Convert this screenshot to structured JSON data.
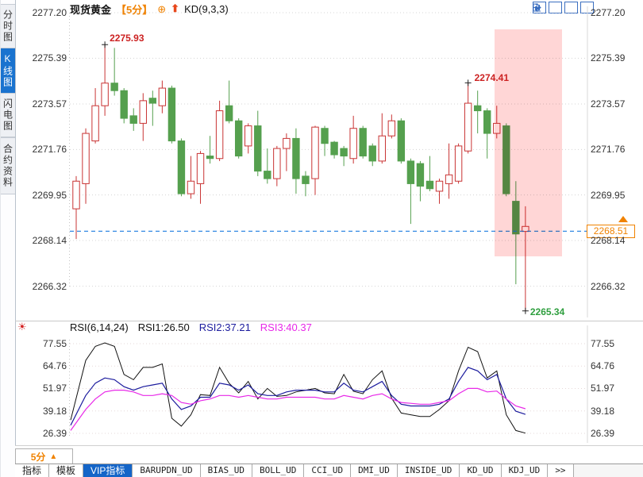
{
  "header": {
    "symbol": "现货黄金",
    "period": "【5分】",
    "plus_icon": "⊕",
    "up_arrow_icon": "⬆",
    "indicator": "KD(9,3,3)"
  },
  "toolbar_icons": [
    "move-crosshair",
    "chart-overlay",
    "chart-play",
    "exit-window"
  ],
  "sidebar": {
    "items": [
      {
        "label": "分时图",
        "selected": false
      },
      {
        "label": "K线图",
        "selected": true
      },
      {
        "label": "闪电图",
        "selected": false
      },
      {
        "label": "合约资料",
        "selected": false
      }
    ]
  },
  "main_chart": {
    "current_price_label": "2268.51",
    "annotations": {
      "high1": "2275.93",
      "high2": "2274.41",
      "low": "2265.34"
    }
  },
  "rsi_panel": {
    "title": "RSI(6,14,24)",
    "value1": "RSI1:26.50",
    "value2": "RSI2:37.21",
    "value3": "RSI3:40.37"
  },
  "bottom_bar": {
    "period_label": "5分",
    "period_arrow": "▲",
    "tabs": [
      {
        "label": "指标",
        "selected": false
      },
      {
        "label": "模板",
        "selected": false
      },
      {
        "label": "VIP指标",
        "selected": true
      },
      {
        "label": "BARUPDN_UD",
        "selected": false
      },
      {
        "label": "BIAS_UD",
        "selected": false
      },
      {
        "label": "BOLL_UD",
        "selected": false
      },
      {
        "label": "CCI_UD",
        "selected": false
      },
      {
        "label": "DMI_UD",
        "selected": false
      },
      {
        "label": "INSIDE_UD",
        "selected": false
      },
      {
        "label": "KD_UD",
        "selected": false
      },
      {
        "label": "KDJ_UD",
        "selected": false
      },
      {
        "label": ">>",
        "selected": false
      }
    ]
  },
  "colors": {
    "up": "#c93434",
    "down": "#55a04e",
    "accent_orange": "#f08200",
    "annotation_red": "#cc2222",
    "annotation_green": "#2e9e3e",
    "current_line_blue": "#1b7ce0",
    "selected_blue": "#1a73cf",
    "rsi1": "#111111",
    "rsi2": "#1c1c9e",
    "rsi3": "#e829e8",
    "zone_pink": "#ffd6d6"
  },
  "chart_data": {
    "type": "candlestick",
    "title": "现货黄金 5分 K线",
    "y_axis_ticks": [
      2277.2,
      2275.39,
      2273.57,
      2271.76,
      2269.95,
      2268.14,
      2266.32
    ],
    "ylim": [
      2265.0,
      2277.8
    ],
    "current_price": 2268.51,
    "grid": "dotted-horizontal",
    "candles_ohlc": [
      [
        2269.4,
        2270.7,
        2268.2,
        2270.5
      ],
      [
        2270.4,
        2272.6,
        2269.6,
        2272.4
      ],
      [
        2272.1,
        2274.2,
        2272.0,
        2273.5
      ],
      [
        2273.5,
        2275.93,
        2273.1,
        2274.4
      ],
      [
        2274.4,
        2275.8,
        2273.9,
        2274.1
      ],
      [
        2274.1,
        2274.2,
        2272.8,
        2273.0
      ],
      [
        2273.1,
        2273.4,
        2272.5,
        2272.8
      ],
      [
        2272.8,
        2274.0,
        2272.1,
        2273.7
      ],
      [
        2273.8,
        2274.1,
        2272.7,
        2273.6
      ],
      [
        2273.5,
        2274.5,
        2273.2,
        2274.2
      ],
      [
        2274.2,
        2274.3,
        2272.0,
        2272.1
      ],
      [
        2272.1,
        2272.2,
        2269.9,
        2270.0
      ],
      [
        2270.0,
        2271.5,
        2269.8,
        2270.5
      ],
      [
        2270.4,
        2271.7,
        2269.6,
        2271.6
      ],
      [
        2271.5,
        2272.3,
        2271.2,
        2271.4
      ],
      [
        2271.4,
        2273.7,
        2271.3,
        2273.3
      ],
      [
        2273.5,
        2274.5,
        2272.8,
        2272.9
      ],
      [
        2272.9,
        2273.0,
        2271.4,
        2271.5
      ],
      [
        2271.9,
        2272.8,
        2271.6,
        2272.7
      ],
      [
        2272.7,
        2273.3,
        2270.7,
        2270.9
      ],
      [
        2270.9,
        2271.8,
        2270.4,
        2270.6
      ],
      [
        2270.6,
        2271.9,
        2270.3,
        2271.8
      ],
      [
        2271.8,
        2272.4,
        2270.9,
        2272.2
      ],
      [
        2272.2,
        2272.6,
        2270.0,
        2270.6
      ],
      [
        2270.7,
        2270.9,
        2269.9,
        2270.4
      ],
      [
        2270.6,
        2272.7,
        2269.95,
        2272.65
      ],
      [
        2272.6,
        2272.7,
        2271.5,
        2272.0
      ],
      [
        2272.05,
        2272.1,
        2271.4,
        2271.55
      ],
      [
        2271.8,
        2271.9,
        2271.1,
        2271.5
      ],
      [
        2271.4,
        2273.1,
        2271.2,
        2272.6
      ],
      [
        2272.6,
        2272.7,
        2271.4,
        2271.5
      ],
      [
        2271.9,
        2272.0,
        2271.1,
        2271.3
      ],
      [
        2271.3,
        2273.2,
        2271.2,
        2272.3
      ],
      [
        2272.3,
        2273.15,
        2272.2,
        2272.9
      ],
      [
        2272.9,
        2273.0,
        2271.2,
        2271.3
      ],
      [
        2271.3,
        2271.4,
        2268.8,
        2270.4
      ],
      [
        2271.2,
        2271.3,
        2269.7,
        2270.3
      ],
      [
        2270.5,
        2271.5,
        2270.1,
        2270.2
      ],
      [
        2270.1,
        2270.6,
        2269.6,
        2270.5
      ],
      [
        2270.4,
        2272.0,
        2269.8,
        2270.75
      ],
      [
        2270.5,
        2272.0,
        2270.4,
        2271.9
      ],
      [
        2271.7,
        2274.41,
        2271.6,
        2273.6
      ],
      [
        2273.5,
        2274.1,
        2272.4,
        2273.3
      ],
      [
        2273.3,
        2273.4,
        2271.4,
        2272.4
      ],
      [
        2272.4,
        2273.5,
        2272.2,
        2272.8
      ],
      [
        2272.7,
        2272.8,
        2269.9,
        2270.0
      ],
      [
        2269.7,
        2270.5,
        2266.4,
        2268.4
      ],
      [
        2268.5,
        2269.5,
        2265.34,
        2268.7
      ]
    ],
    "markers": [
      {
        "index": 3,
        "at": "high",
        "label": "2275.93",
        "color": "#cc2222"
      },
      {
        "index": 41,
        "at": "high",
        "label": "2274.41",
        "color": "#cc2222"
      },
      {
        "index": 47,
        "at": "low",
        "label": "2265.34",
        "color": "#2e9e3e"
      }
    ],
    "highlight_zone": {
      "note": "pink shaded drop zone over last candles"
    },
    "rsi": {
      "type": "line",
      "y_axis_ticks": [
        77.55,
        64.76,
        51.97,
        39.18,
        26.39
      ],
      "series": [
        {
          "name": "RSI1",
          "color": "#111111",
          "values": [
            34,
            68,
            76,
            78,
            76,
            60,
            57,
            64,
            64,
            66,
            35,
            30.5,
            37,
            48.5,
            48,
            64,
            55,
            49.5,
            56,
            46,
            52,
            47.5,
            48,
            50,
            51,
            52,
            49.5,
            49,
            60,
            50.4,
            49,
            57,
            62,
            46.5,
            38,
            37,
            36,
            36,
            40,
            45,
            62,
            75.5,
            73,
            58,
            62,
            37,
            28,
            26.5
          ]
        },
        {
          "name": "RSI2",
          "color": "#1c1c9e",
          "values": [
            31,
            48,
            55,
            58,
            57,
            53,
            51,
            53,
            54,
            55,
            46,
            40,
            42,
            47,
            47,
            55,
            54,
            51,
            54,
            49,
            48,
            48,
            50,
            51,
            51,
            51,
            50,
            50,
            55,
            51,
            50,
            53,
            56,
            48,
            43,
            42,
            42,
            42,
            43,
            46,
            56,
            64,
            62,
            57,
            60,
            46,
            39,
            37.2
          ]
        },
        {
          "name": "RSI3",
          "color": "#e829e8",
          "values": [
            28,
            40,
            46,
            50,
            51,
            51,
            50,
            48,
            48,
            49,
            48,
            44,
            43,
            45,
            46,
            48,
            48,
            47,
            48,
            47,
            46,
            46,
            47,
            47,
            47,
            47,
            46,
            46,
            48,
            47,
            46,
            48,
            49,
            46,
            44,
            43.5,
            43,
            43,
            44,
            45,
            49,
            52,
            52,
            50,
            50.5,
            46,
            42,
            40.4
          ]
        }
      ]
    }
  }
}
